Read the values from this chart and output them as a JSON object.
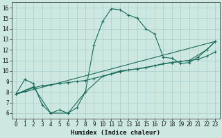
{
  "title": "",
  "xlabel": "Humidex (Indice chaleur)",
  "bg_color": "#cce8e0",
  "grid_color": "#aacccc",
  "line_color": "#1a6b5a",
  "xlim": [
    -0.5,
    23.5
  ],
  "ylim": [
    5.5,
    16.5
  ],
  "xticks": [
    0,
    1,
    2,
    3,
    4,
    5,
    6,
    7,
    8,
    9,
    10,
    11,
    12,
    13,
    14,
    15,
    16,
    17,
    18,
    19,
    20,
    21,
    22,
    23
  ],
  "yticks": [
    6,
    7,
    8,
    9,
    10,
    11,
    12,
    13,
    14,
    15,
    16
  ],
  "lines": [
    {
      "x": [
        0,
        1,
        2,
        3,
        4,
        5,
        6,
        7,
        8,
        9,
        10,
        11,
        12,
        13,
        14,
        15,
        16,
        17,
        18,
        19,
        20,
        21,
        22,
        23
      ],
      "y": [
        7.8,
        9.2,
        8.8,
        6.8,
        6.0,
        6.3,
        6.0,
        6.5,
        8.0,
        12.5,
        14.7,
        15.9,
        15.8,
        15.3,
        15.0,
        14.0,
        13.5,
        11.3,
        11.2,
        10.7,
        10.8,
        11.3,
        12.0,
        12.8
      ],
      "marker": true
    },
    {
      "x": [
        0,
        23
      ],
      "y": [
        7.8,
        12.8
      ],
      "marker": false
    },
    {
      "x": [
        0,
        1,
        2,
        3,
        4,
        5,
        6,
        7,
        8,
        9,
        10,
        11,
        12,
        13,
        14,
        15,
        16,
        17,
        18,
        19,
        20,
        21,
        22,
        23
      ],
      "y": [
        7.8,
        8.1,
        8.4,
        8.6,
        8.7,
        8.8,
        8.9,
        9.0,
        9.1,
        9.3,
        9.5,
        9.7,
        9.9,
        10.1,
        10.2,
        10.3,
        10.5,
        10.7,
        10.8,
        10.9,
        11.0,
        11.1,
        11.4,
        11.8
      ],
      "marker": true
    },
    {
      "x": [
        0,
        2,
        4,
        6,
        8,
        10,
        12,
        14,
        16,
        18,
        20,
        22,
        23
      ],
      "y": [
        7.8,
        8.5,
        6.0,
        6.0,
        8.0,
        9.5,
        10.0,
        10.2,
        10.5,
        10.8,
        11.0,
        12.0,
        12.8
      ],
      "marker": true
    }
  ]
}
